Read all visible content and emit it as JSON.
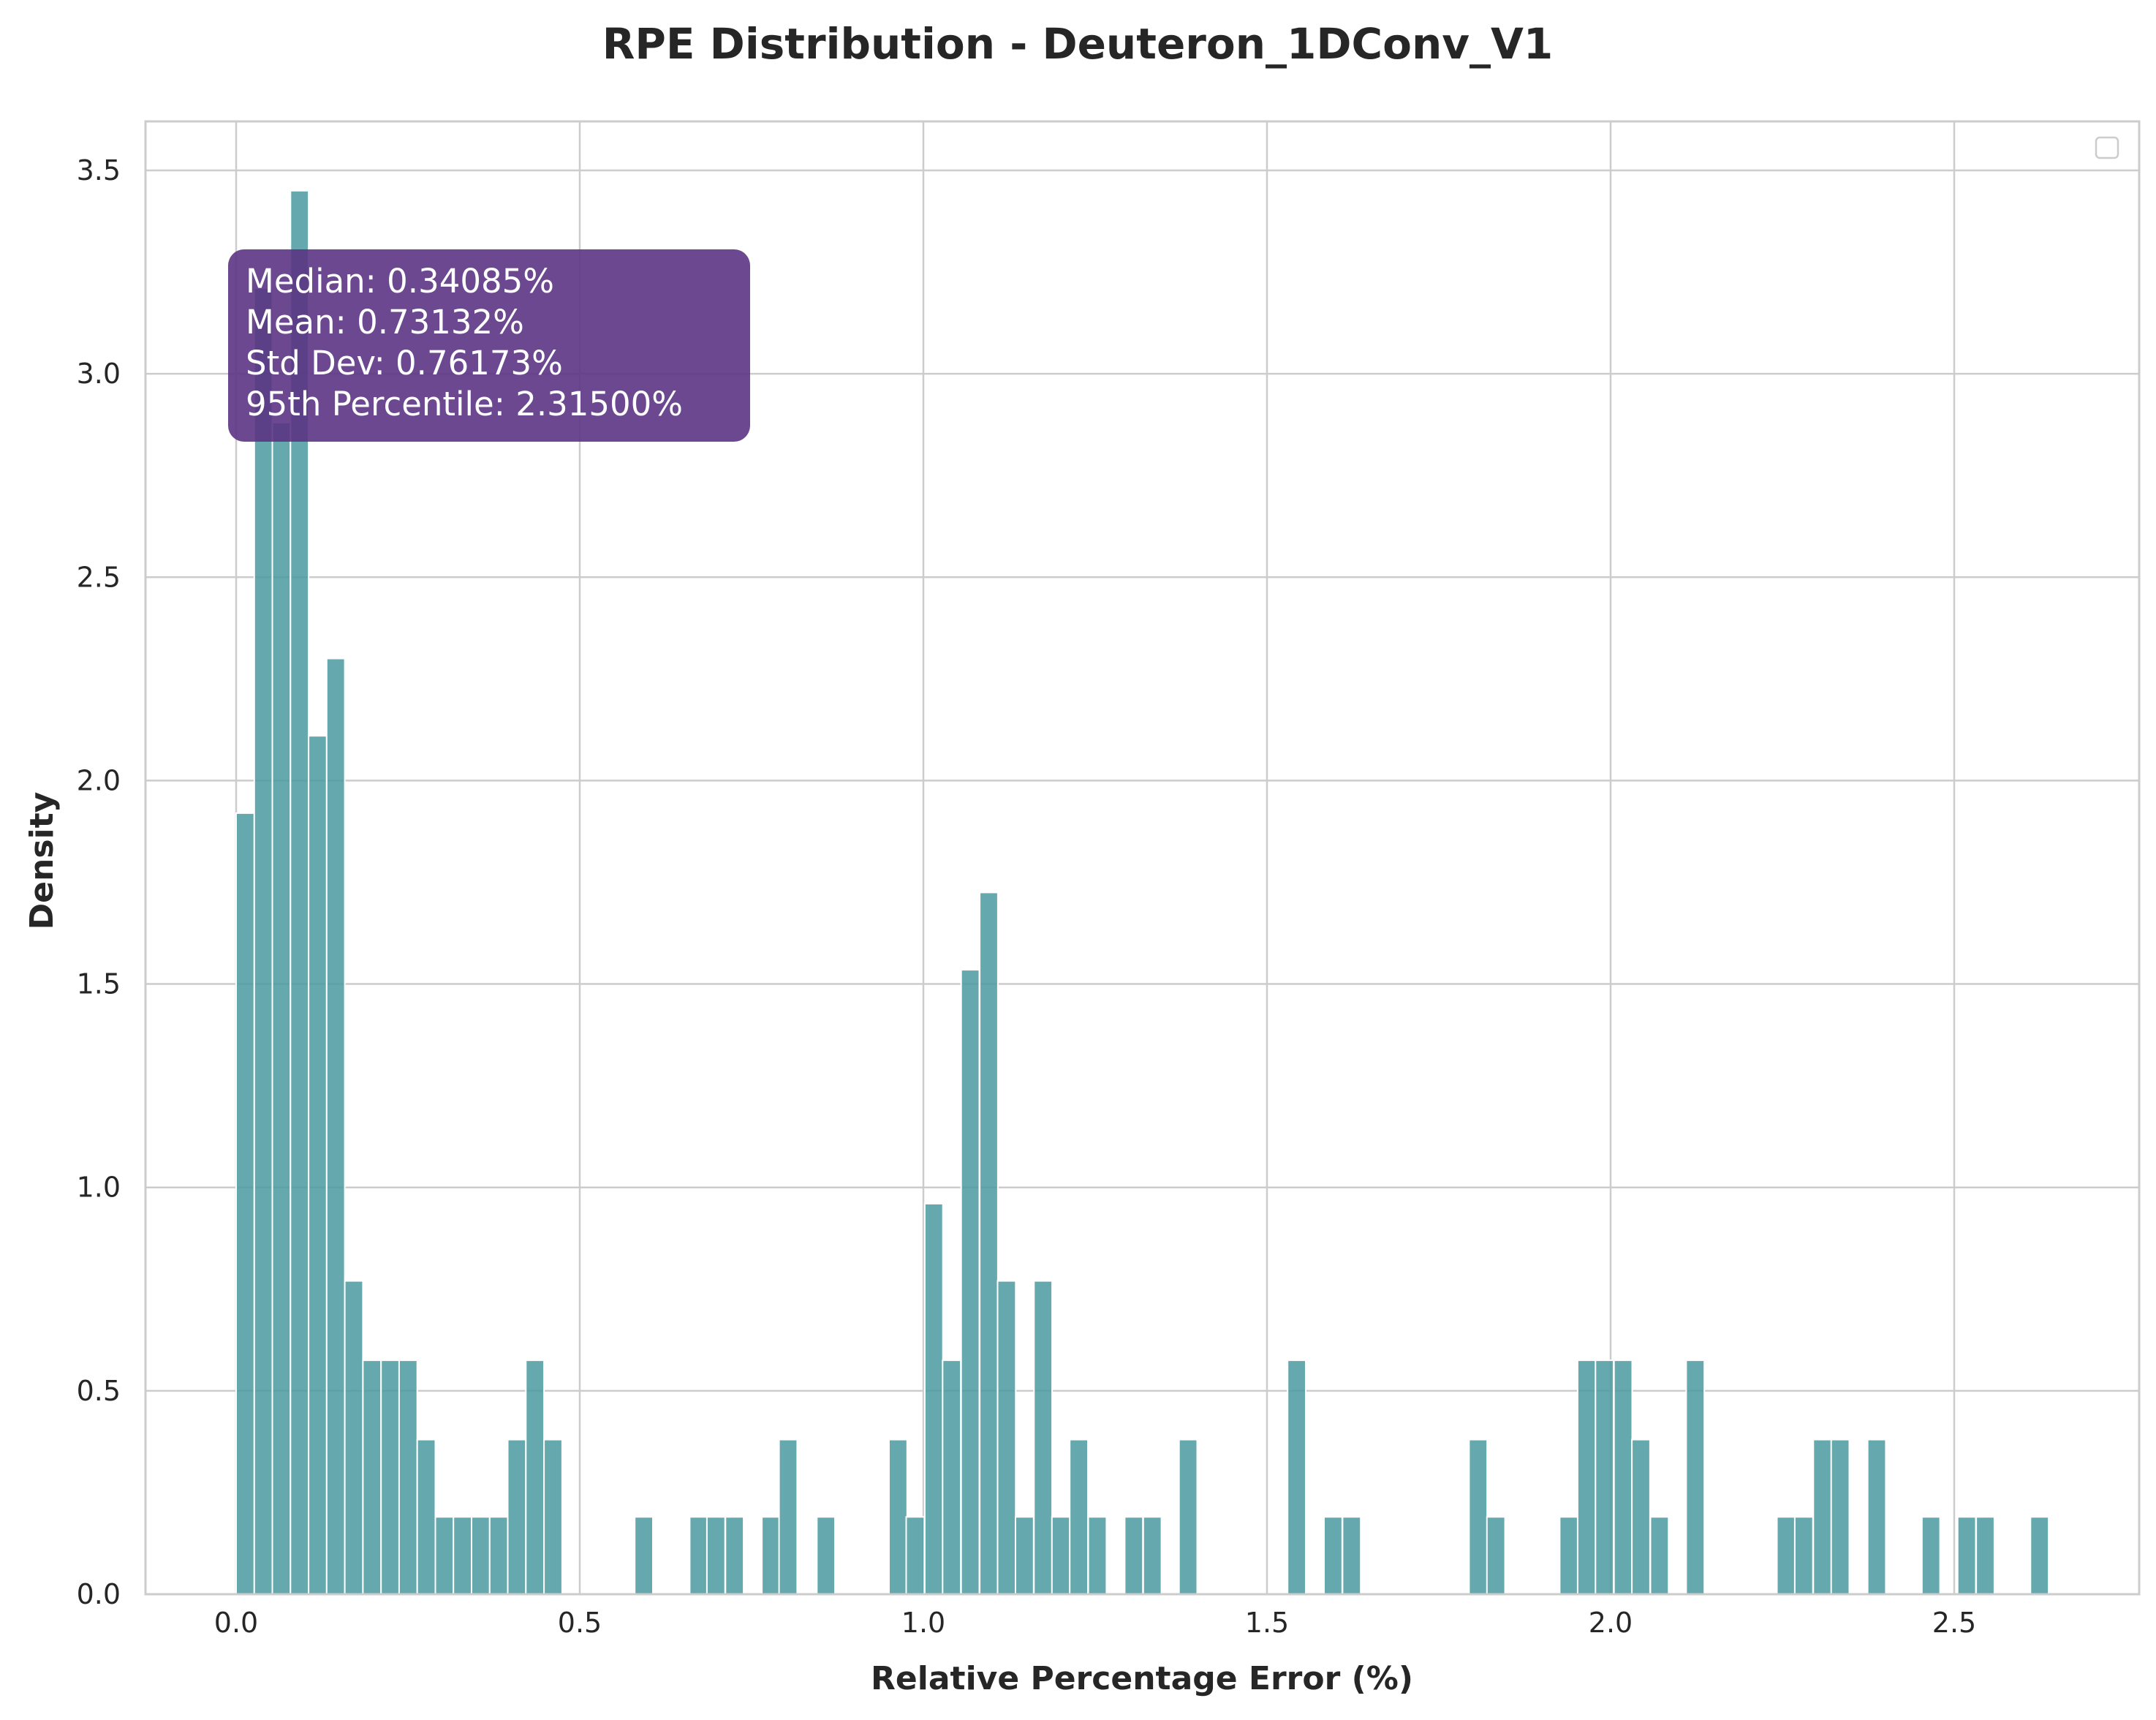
{
  "chart_data": {
    "type": "bar",
    "title": "RPE Distribution - Deuteron_1DConv_V1",
    "xlabel": "Relative Percentage Error (%)",
    "ylabel": "Density",
    "xlim": [
      -0.13,
      2.76
    ],
    "ylim": [
      0,
      3.63
    ],
    "xticks": [
      "0.0",
      "0.5",
      "1.0",
      "1.5",
      "2.0",
      "2.5"
    ],
    "yticks": [
      "0.0",
      "0.5",
      "1.0",
      "1.5",
      "2.0",
      "2.5",
      "3.0",
      "3.5"
    ],
    "grid": true,
    "legend": "top-right (empty)",
    "bar_color": "#4a9aa0",
    "bin_width": 0.02635,
    "bin_starts": [
      0.0,
      0.02635,
      0.0527,
      0.07905,
      0.1054,
      0.13175,
      0.1581,
      0.18445,
      0.2108,
      0.23715,
      0.2635,
      0.28985,
      0.3162,
      0.34255,
      0.3689,
      0.39525,
      0.4216,
      0.44795,
      0.58,
      0.66,
      0.685,
      0.712,
      0.765,
      0.79,
      0.845,
      0.95,
      0.975,
      1.002,
      1.028,
      1.055,
      1.082,
      1.108,
      1.134,
      1.161,
      1.187,
      1.213,
      1.24,
      1.293,
      1.32,
      1.372,
      1.53,
      1.583,
      1.61,
      1.794,
      1.82,
      1.926,
      1.952,
      1.978,
      2.005,
      2.031,
      2.058,
      2.11,
      2.242,
      2.268,
      2.295,
      2.321,
      2.374,
      2.453,
      2.505,
      2.532,
      2.611
    ],
    "values": [
      1.92,
      3.21,
      2.88,
      3.45,
      2.11,
      2.3,
      0.77,
      0.575,
      0.575,
      0.575,
      0.38,
      0.19,
      0.19,
      0.19,
      0.19,
      0.38,
      0.575,
      0.38,
      0.19,
      0.19,
      0.19,
      0.19,
      0.19,
      0.38,
      0.19,
      0.38,
      0.19,
      0.96,
      0.575,
      1.535,
      1.725,
      0.77,
      0.19,
      0.77,
      0.19,
      0.38,
      0.19,
      0.19,
      0.19,
      0.38,
      0.575,
      0.19,
      0.19,
      0.38,
      0.19,
      0.19,
      0.575,
      0.575,
      0.575,
      0.38,
      0.19,
      0.575,
      0.19,
      0.19,
      0.38,
      0.38,
      0.38,
      0.19,
      0.19,
      0.19,
      0.19
    ],
    "annotation": {
      "lines": [
        "Median: 0.34085%",
        "Mean: 0.73132%",
        "Std Dev: 0.76173%",
        "95th Percentile: 2.31500%"
      ],
      "box_color": "#5b3483"
    }
  }
}
